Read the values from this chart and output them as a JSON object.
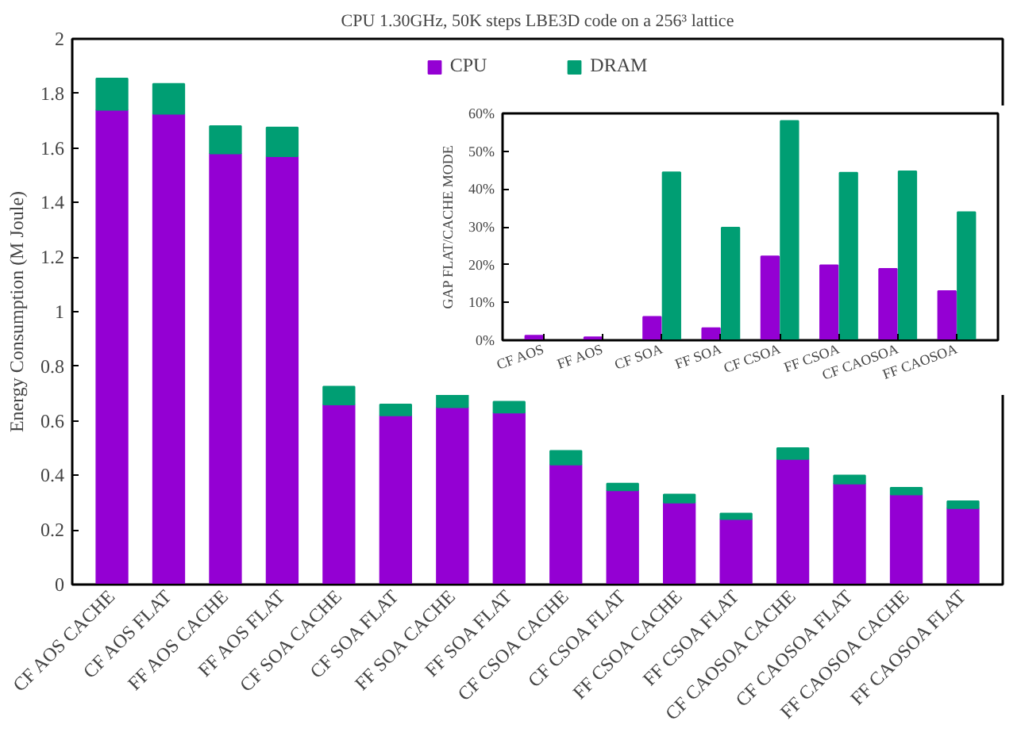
{
  "chart_data": [
    {
      "type": "bar",
      "title": "CPU 1.30GHz, 50K steps LBE3D code on a 256³ lattice",
      "ylabel": "Energy Consumption (M Joule)",
      "stacked": true,
      "categories": [
        "CF AOS CACHE",
        "CF AOS FLAT",
        "FF AOS CACHE",
        "FF AOS FLAT",
        "CF SOA CACHE",
        "CF SOA FLAT",
        "FF SOA CACHE",
        "FF SOA FLAT",
        "CF CSOA CACHE",
        "CF CSOA FLAT",
        "FF CSOA CACHE",
        "FF CSOA FLAT",
        "CF CAOSOA CACHE",
        "CF CAOSOA FLAT",
        "FF CAOSOA CACHE",
        "FF CAOSOA FLAT"
      ],
      "series": [
        {
          "name": "CPU",
          "color": "#9400d3",
          "values": [
            1.74,
            1.725,
            1.58,
            1.57,
            0.66,
            0.62,
            0.65,
            0.63,
            0.44,
            0.345,
            0.3,
            0.24,
            0.46,
            0.37,
            0.33,
            0.28
          ]
        },
        {
          "name": "DRAM",
          "color": "#009e73",
          "values": [
            0.115,
            0.11,
            0.1,
            0.105,
            0.065,
            0.04,
            0.055,
            0.04,
            0.05,
            0.025,
            0.03,
            0.02,
            0.04,
            0.03,
            0.025,
            0.025
          ]
        }
      ],
      "ylim": [
        0,
        2
      ],
      "yticks": [
        0,
        0.2,
        0.4,
        0.6,
        0.8,
        1,
        1.2,
        1.4,
        1.6,
        1.8,
        2
      ],
      "grid": false,
      "legend": "top"
    },
    {
      "type": "bar",
      "ylabel": "GAP FLAT/CACHE MODE",
      "categories": [
        "CF AOS",
        "FF AOS",
        "CF SOA",
        "FF SOA",
        "CF CSOA",
        "FF CSOA",
        "CF CAOSOA",
        "FF CAOSOA"
      ],
      "series": [
        {
          "color": "#9400d3",
          "values": [
            1.2,
            0.8,
            6.2,
            3.2,
            22.2,
            19.8,
            18.9,
            13
          ]
        },
        {
          "color": "#009e73",
          "values": [
            0,
            0,
            44.4,
            29.8,
            58,
            44.3,
            44.7,
            33.9
          ]
        }
      ],
      "ylim": [
        0,
        60
      ],
      "yticks": [
        {
          "value": 0,
          "label": "0%"
        },
        {
          "value": 10,
          "label": "10%"
        },
        {
          "value": 20,
          "label": "20%"
        },
        {
          "value": 30,
          "label": "30%"
        },
        {
          "value": 40,
          "label": "40%"
        },
        {
          "value": 50,
          "label": "50%"
        },
        {
          "value": 60,
          "label": "60%"
        }
      ],
      "grid": false,
      "legend": false
    }
  ]
}
